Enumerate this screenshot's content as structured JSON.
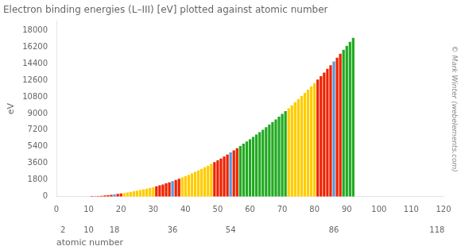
{
  "chart_data": {
    "type": "bar",
    "title": "Electron binding energies (L–III) [eV] plotted against atomic number",
    "xlabel": "atomic number",
    "ylabel": "eV",
    "annotations": [
      "© Mark Winter (webelements.com)"
    ],
    "x": [
      11,
      12,
      13,
      14,
      15,
      16,
      17,
      18,
      19,
      20,
      21,
      22,
      23,
      24,
      25,
      26,
      27,
      28,
      29,
      30,
      31,
      32,
      33,
      34,
      35,
      36,
      37,
      38,
      39,
      40,
      41,
      42,
      43,
      44,
      45,
      46,
      47,
      48,
      49,
      50,
      51,
      52,
      53,
      54,
      55,
      56,
      57,
      58,
      59,
      60,
      61,
      62,
      63,
      64,
      65,
      66,
      67,
      68,
      69,
      70,
      71,
      72,
      73,
      74,
      75,
      76,
      77,
      78,
      79,
      80,
      81,
      82,
      83,
      84,
      85,
      86,
      87,
      88,
      89,
      90,
      91,
      92
    ],
    "values": [
      63,
      49,
      73,
      99,
      130,
      163,
      202,
      250,
      294,
      346,
      398,
      453,
      521,
      584,
      651,
      719,
      793,
      872,
      952,
      1021,
      1116,
      1217,
      1323,
      1436,
      1550,
      1678,
      1804,
      1940,
      2079,
      2222,
      2371,
      2520,
      2677,
      2836,
      2999,
      3173,
      3351,
      3537,
      3730,
      3929,
      4132,
      4341,
      4557,
      4786,
      5012,
      5247,
      5483,
      5723,
      5964,
      6208,
      6459,
      6716,
      6977,
      7243,
      7514,
      7790,
      8071,
      8358,
      8648,
      8944,
      9244,
      9560,
      9881,
      10207,
      10535,
      10871,
      11215,
      11563,
      11919,
      12284,
      12658,
      13035,
      13419,
      13813,
      14214,
      14619,
      15031,
      15444,
      15871,
      16300,
      16733,
      17166
    ],
    "colors": [
      "#ee2200",
      "#ee2200",
      "#ee2200",
      "#ee2200",
      "#ee2200",
      "#ee2200",
      "#ee2200",
      "#5599dd",
      "#ee2200",
      "#ee2200",
      "#ffcc00",
      "#ffcc00",
      "#ffcc00",
      "#ffcc00",
      "#ffcc00",
      "#ffcc00",
      "#ffcc00",
      "#ffcc00",
      "#ffcc00",
      "#ffcc00",
      "#ee2200",
      "#ee2200",
      "#ee2200",
      "#ee2200",
      "#ee2200",
      "#5599dd",
      "#ee2200",
      "#ee2200",
      "#ffcc00",
      "#ffcc00",
      "#ffcc00",
      "#ffcc00",
      "#ffcc00",
      "#ffcc00",
      "#ffcc00",
      "#ffcc00",
      "#ffcc00",
      "#ffcc00",
      "#ee2200",
      "#ee2200",
      "#ee2200",
      "#ee2200",
      "#ee2200",
      "#5599dd",
      "#ee2200",
      "#ee2200",
      "#22aa22",
      "#22aa22",
      "#22aa22",
      "#22aa22",
      "#22aa22",
      "#22aa22",
      "#22aa22",
      "#22aa22",
      "#22aa22",
      "#22aa22",
      "#22aa22",
      "#22aa22",
      "#22aa22",
      "#22aa22",
      "#22aa22",
      "#ffcc00",
      "#ffcc00",
      "#ffcc00",
      "#ffcc00",
      "#ffcc00",
      "#ffcc00",
      "#ffcc00",
      "#ffcc00",
      "#ffcc00",
      "#ee2200",
      "#ee2200",
      "#ee2200",
      "#ee2200",
      "#ee2200",
      "#5599dd",
      "#ee2200",
      "#ee2200",
      "#22aa22",
      "#22aa22",
      "#22aa22",
      "#22aa22"
    ],
    "xlim": [
      0,
      120
    ],
    "xticks": [
      0,
      10,
      20,
      30,
      40,
      50,
      60,
      70,
      80,
      90,
      100,
      110,
      120
    ],
    "x2lim": [
      0,
      120
    ],
    "x2ticks": [
      2,
      10,
      18,
      36,
      54,
      86,
      118
    ],
    "ylim": [
      0,
      19000
    ],
    "yticks": [
      0,
      1800,
      3600,
      5400,
      7200,
      9000,
      10800,
      12600,
      14400,
      16200,
      18000
    ],
    "grid": false
  }
}
